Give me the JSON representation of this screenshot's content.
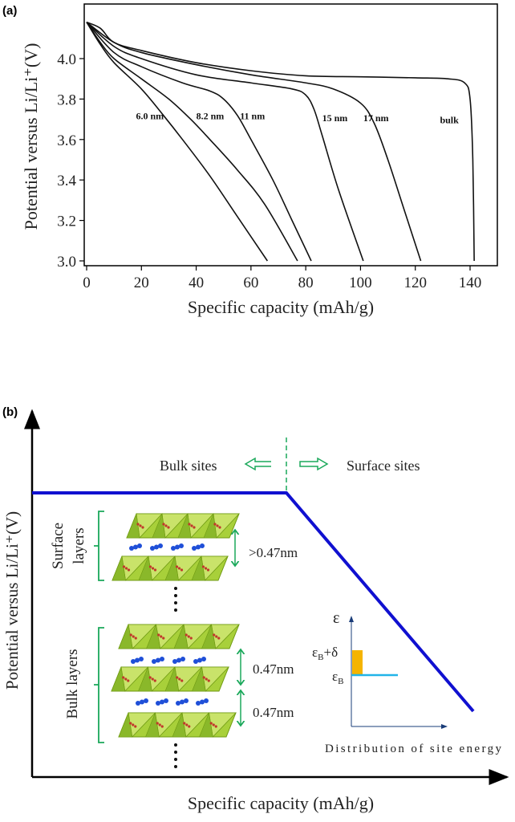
{
  "panel_a": {
    "label": "(a)",
    "chart_data": {
      "type": "line",
      "title": "",
      "xlabel": "Specific capacity (mAh/g)",
      "ylabel": "Potential versus Li/Li⁺(V)",
      "xlim": [
        0,
        150
      ],
      "ylim": [
        2.97,
        4.27
      ],
      "xticks": [
        0,
        20,
        40,
        60,
        80,
        100,
        120,
        140
      ],
      "yticks": [
        3.0,
        3.2,
        3.4,
        3.6,
        3.8,
        4.0
      ],
      "ytick_labels": [
        "3.0",
        "3.2",
        "3.4",
        "3.6",
        "3.8",
        "4.0"
      ],
      "grid": false,
      "series": [
        {
          "name": "6.0 nm",
          "x": [
            0,
            5,
            10,
            20,
            28,
            35,
            45,
            55,
            66
          ],
          "y": [
            4.18,
            4.07,
            3.98,
            3.85,
            3.72,
            3.6,
            3.42,
            3.22,
            3.0
          ]
        },
        {
          "name": "8.2 nm",
          "x": [
            0,
            5,
            10,
            20,
            30,
            38,
            45,
            55,
            65,
            77
          ],
          "y": [
            4.18,
            4.08,
            4.0,
            3.9,
            3.8,
            3.7,
            3.6,
            3.45,
            3.28,
            3.0
          ]
        },
        {
          "name": "11 nm",
          "x": [
            0,
            10,
            20,
            35,
            45,
            50,
            55,
            60,
            68,
            75,
            82
          ],
          "y": [
            4.18,
            4.03,
            3.96,
            3.88,
            3.84,
            3.8,
            3.72,
            3.6,
            3.4,
            3.2,
            3.0
          ]
        },
        {
          "name": "15 nm",
          "x": [
            0,
            10,
            20,
            40,
            60,
            75,
            80,
            83,
            86,
            92,
            101
          ],
          "y": [
            4.18,
            4.06,
            4.0,
            3.92,
            3.88,
            3.85,
            3.82,
            3.75,
            3.62,
            3.35,
            3.0
          ]
        },
        {
          "name": "17 nm",
          "x": [
            0,
            10,
            20,
            40,
            60,
            80,
            90,
            100,
            105,
            110,
            116,
            122
          ],
          "y": [
            4.18,
            4.08,
            4.03,
            3.97,
            3.92,
            3.88,
            3.85,
            3.78,
            3.68,
            3.5,
            3.25,
            3.0
          ]
        },
        {
          "name": "bulk",
          "x": [
            0,
            5,
            10,
            20,
            40,
            60,
            80,
            100,
            120,
            132,
            138,
            140,
            141,
            141.5
          ],
          "y": [
            4.18,
            4.15,
            4.08,
            4.04,
            3.98,
            3.94,
            3.915,
            3.91,
            3.905,
            3.9,
            3.88,
            3.8,
            3.5,
            3.0
          ]
        }
      ],
      "annotations": [
        {
          "text": "6.0 nm",
          "x": 18,
          "y": 3.7
        },
        {
          "text": "8.2 nm",
          "x": 40,
          "y": 3.7
        },
        {
          "text": "11 nm",
          "x": 56,
          "y": 3.7
        },
        {
          "text": "15 nm",
          "x": 86,
          "y": 3.69
        },
        {
          "text": "17 nm",
          "x": 101,
          "y": 3.69
        },
        {
          "text": "bulk",
          "x": 129,
          "y": 3.68
        }
      ]
    }
  },
  "panel_b": {
    "label": "(b)",
    "ylabel": "Potential versus Li/Li⁺(V)",
    "xlabel": "Specific capacity (mAh/g)",
    "bulk_sites": "Bulk sites",
    "surface_sites": "Surface sites",
    "surface_layers": [
      "Surface",
      "layers"
    ],
    "bulk_layers": "Bulk layers",
    "spacing_surface": ">0.47nm",
    "spacing_bulk_1": "0.47nm",
    "spacing_bulk_2": "0.47nm",
    "inset": {
      "eps": "ε",
      "eps_b_delta": {
        "base": "ε",
        "sub": "B",
        "suffix": "+δ"
      },
      "eps_b": {
        "base": "ε",
        "sub": "B"
      },
      "xlabel": "Distribution of site energy"
    },
    "colors": {
      "line": "#1010d0",
      "green": "#1aa85a",
      "orange": "#f5b400",
      "cyan": "#22b4e8",
      "crystal": "#9ccc2a"
    }
  }
}
